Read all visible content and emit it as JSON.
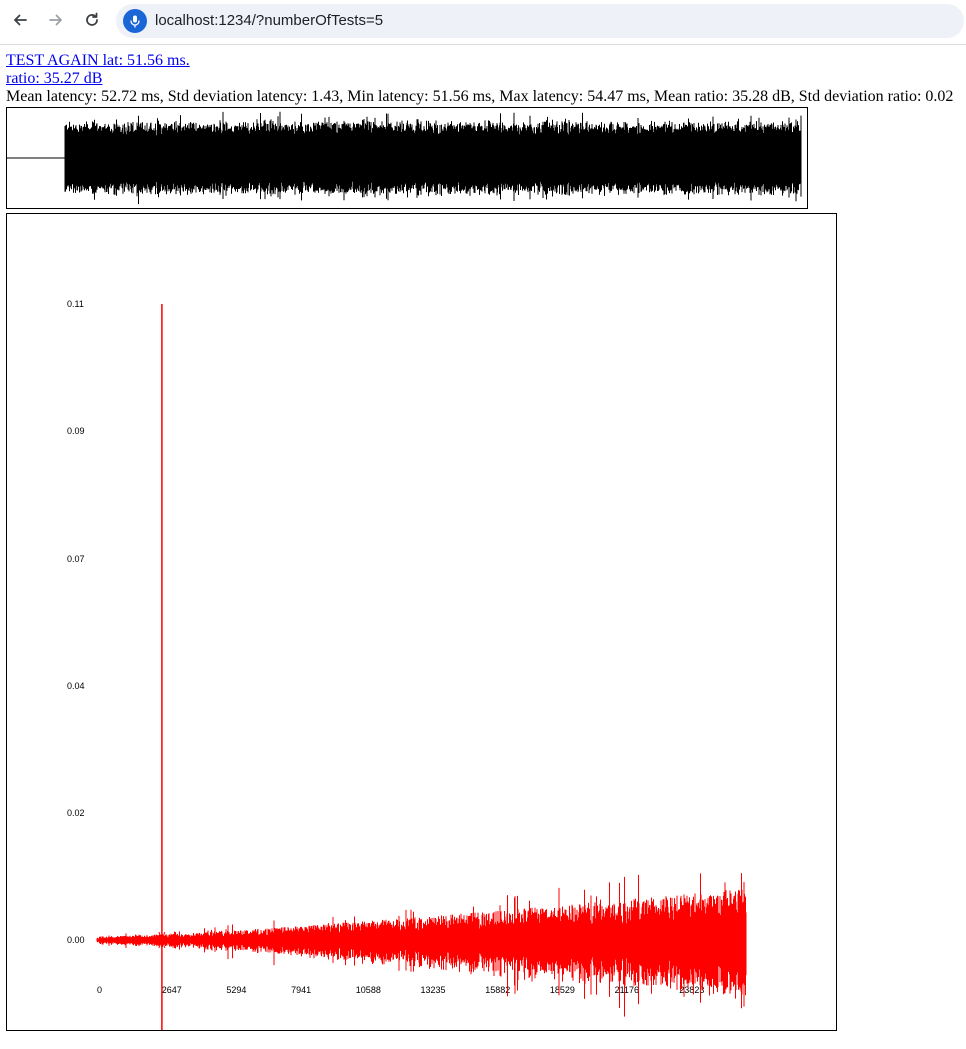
{
  "browser": {
    "url": "localhost:1234/?numberOfTests=5"
  },
  "page": {
    "test_again_link": "TEST AGAIN lat: 51.56 ms.",
    "ratio_link": "ratio: 35.27 dB",
    "stats": "Mean latency: 52.72 ms, Std deviation latency: 1.43, Min latency: 51.56 ms, Max latency: 54.47 ms, Mean ratio: 35.28 dB, Std deviation ratio: 0.02"
  },
  "waveform": {
    "color": "#000000",
    "silence_until_fraction": 0.072
  },
  "chart_data": {
    "type": "line",
    "color": "#ff0000",
    "x_ticks": [
      "0",
      "2647",
      "5294",
      "7941",
      "10588",
      "13235",
      "15882",
      "18529",
      "21176",
      "23823"
    ],
    "y_ticks": [
      "0.11",
      "0.09",
      "0.07",
      "0.04",
      "0.02",
      "0.00"
    ],
    "xlim": [
      0,
      26470
    ],
    "ylim": [
      0,
      0.11
    ],
    "peak": {
      "x": 2647,
      "y": 0.11
    },
    "noise_amplitude_start": 0.0006,
    "noise_amplitude_end": 0.009
  }
}
